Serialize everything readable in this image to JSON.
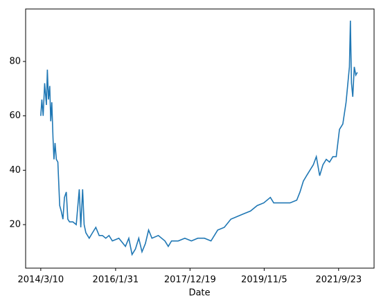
{
  "chart_data": {
    "type": "line",
    "xlabel": "Date",
    "x": [
      "2014/3/10",
      "2014/3/20",
      "2014/4/1",
      "2014/4/15",
      "2014/5/1",
      "2014/5/10",
      "2014/5/20",
      "2014/6/1",
      "2014/6/10",
      "2014/6/20",
      "2014/7/1",
      "2014/7/10",
      "2014/7/20",
      "2014/8/1",
      "2014/8/15",
      "2014/9/1",
      "2014/9/15",
      "2014/10/1",
      "2014/10/15",
      "2014/11/1",
      "2014/11/15",
      "2014/12/1",
      "2015/1/1",
      "2015/2/1",
      "2015/3/1",
      "2015/3/15",
      "2015/4/1",
      "2015/4/15",
      "2015/5/1",
      "2015/6/1",
      "2015/7/1",
      "2015/8/1",
      "2015/9/1",
      "2015/10/1",
      "2015/11/1",
      "2015/12/1",
      "2016/1/1",
      "2016/3/1",
      "2016/5/1",
      "2016/6/1",
      "2016/7/1",
      "2016/8/1",
      "2016/9/1",
      "2016/10/1",
      "2016/11/1",
      "2016/12/1",
      "2017/1/1",
      "2017/3/1",
      "2017/5/1",
      "2017/6/1",
      "2017/7/1",
      "2017/9/1",
      "2017/11/1",
      "2018/1/1",
      "2018/3/1",
      "2018/5/1",
      "2018/7/1",
      "2018/9/1",
      "2018/11/1",
      "2019/1/1",
      "2019/3/1",
      "2019/5/1",
      "2019/7/1",
      "2019/9/1",
      "2019/11/1",
      "2020/1/1",
      "2020/2/1",
      "2020/3/1",
      "2020/5/1",
      "2020/7/1",
      "2020/9/1",
      "2020/10/1",
      "2020/11/1",
      "2020/12/1",
      "2021/1/1",
      "2021/2/1",
      "2021/3/1",
      "2021/4/1",
      "2021/5/1",
      "2021/6/1",
      "2021/7/1",
      "2021/8/1",
      "2021/9/1",
      "2021/10/1",
      "2021/11/1",
      "2021/12/1",
      "2022/1/1",
      "2022/1/10",
      "2022/1/20",
      "2022/2/1",
      "2022/2/15",
      "2022/3/1",
      "2022/3/15"
    ],
    "series": [
      {
        "color": "#1f77b4",
        "values": [
          60,
          66,
          60,
          72,
          64,
          77,
          66,
          71,
          58,
          65,
          52,
          44,
          50,
          44,
          43,
          27,
          25,
          22,
          30,
          32,
          22,
          21,
          21,
          20,
          33,
          19,
          33,
          20,
          17,
          15,
          17,
          19,
          16,
          16,
          15,
          16,
          14,
          15,
          12,
          15,
          9,
          11,
          15,
          10,
          13,
          18,
          15,
          16,
          14,
          12,
          14,
          14,
          15,
          14,
          15,
          15,
          14,
          18,
          19,
          22,
          23,
          24,
          25,
          27,
          28,
          30,
          28,
          28,
          28,
          28,
          29,
          32,
          36,
          38,
          40,
          42,
          45,
          38,
          42,
          44,
          43,
          45,
          45,
          55,
          57,
          65,
          78,
          95,
          72,
          67,
          78,
          75,
          76
        ]
      }
    ],
    "xlim": [
      "2013/10/21",
      "2022/8/17"
    ],
    "xticks": [
      "2014/3/10",
      "2016/1/31",
      "2017/12/19",
      "2019/11/5",
      "2021/9/23"
    ],
    "ylim": [
      4,
      99.3
    ],
    "yticks": [
      20,
      40,
      60,
      80
    ]
  }
}
